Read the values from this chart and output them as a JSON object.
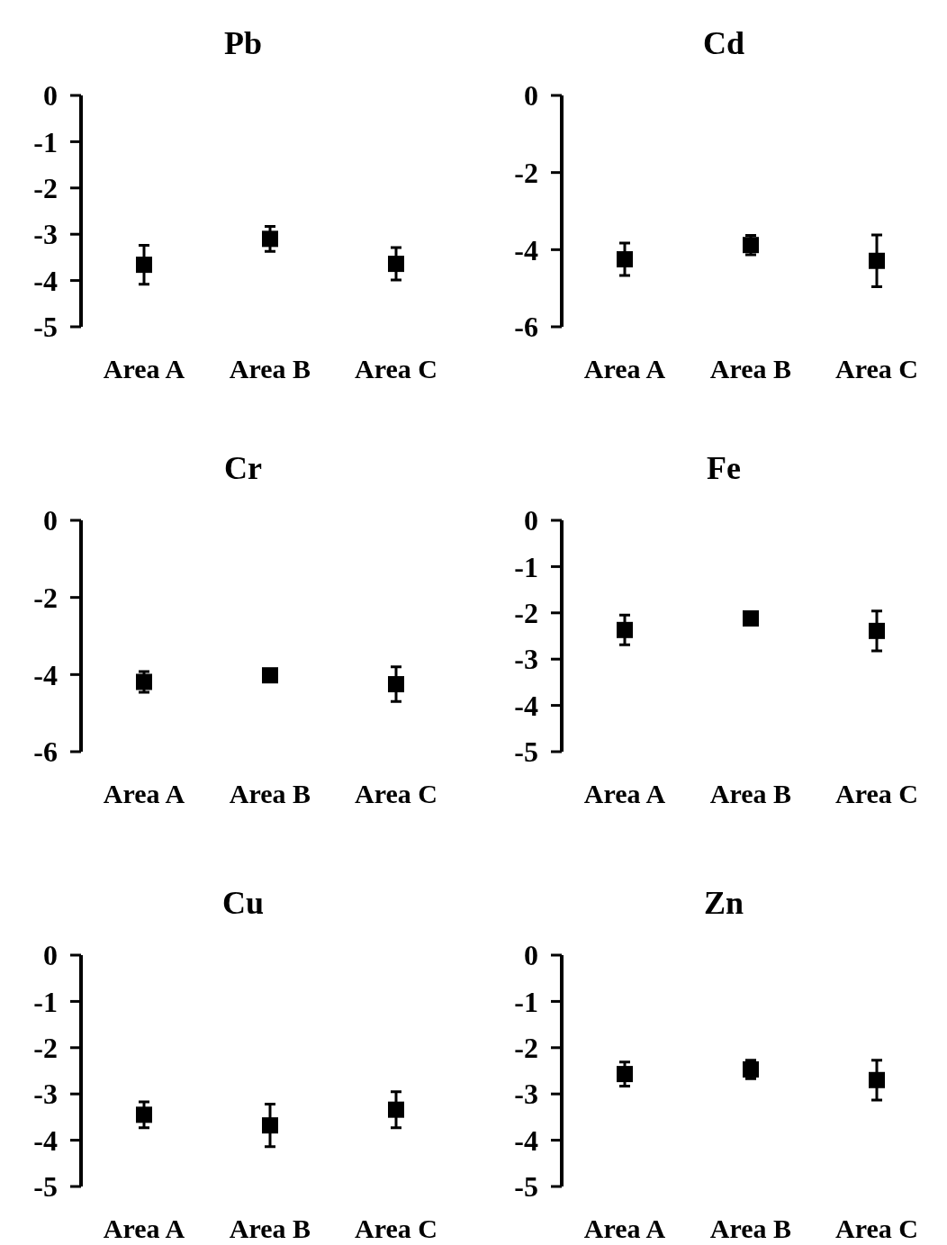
{
  "chart_data": [
    {
      "type": "scatter",
      "title": "Pb",
      "categories": [
        "Area A",
        "Area B",
        "Area C"
      ],
      "values": [
        -3.66,
        -3.1,
        -3.64
      ],
      "errors": [
        0.42,
        0.27,
        0.35
      ],
      "color": "#000000",
      "marker": "square",
      "ylim": [
        -5,
        0
      ],
      "yticks": [
        0,
        -1,
        -2,
        -3,
        -4,
        -5
      ]
    },
    {
      "type": "scatter",
      "title": "Cd",
      "categories": [
        "Area A",
        "Area B",
        "Area C"
      ],
      "values": [
        -4.25,
        -3.88,
        -4.29
      ],
      "errors": [
        0.42,
        0.25,
        0.67
      ],
      "color": "#000000",
      "marker": "square",
      "ylim": [
        -6,
        0
      ],
      "yticks": [
        0,
        -2,
        -4,
        -6
      ]
    },
    {
      "type": "scatter",
      "title": "Cr",
      "categories": [
        "Area A",
        "Area B",
        "Area C"
      ],
      "values": [
        -4.19,
        -4.02,
        -4.25
      ],
      "errors": [
        0.27,
        null,
        0.45
      ],
      "color": "#000000",
      "marker": "square",
      "ylim": [
        -6,
        0
      ],
      "yticks": [
        0,
        -2,
        -4,
        -6
      ]
    },
    {
      "type": "scatter",
      "title": "Fe",
      "categories": [
        "Area A",
        "Area B",
        "Area C"
      ],
      "values": [
        -2.37,
        -2.12,
        -2.39
      ],
      "errors": [
        0.32,
        null,
        0.43
      ],
      "color": "#000000",
      "marker": "square",
      "ylim": [
        -5,
        0
      ],
      "yticks": [
        0,
        -1,
        -2,
        -3,
        -4,
        -5
      ]
    },
    {
      "type": "scatter",
      "title": "Cu",
      "categories": [
        "Area A",
        "Area B",
        "Area C"
      ],
      "values": [
        -3.45,
        -3.68,
        -3.34
      ],
      "errors": [
        0.28,
        0.46,
        0.39
      ],
      "color": "#000000",
      "marker": "square",
      "ylim": [
        -5,
        0
      ],
      "yticks": [
        0,
        -1,
        -2,
        -3,
        -4,
        -5
      ]
    },
    {
      "type": "scatter",
      "title": "Zn",
      "categories": [
        "Area A",
        "Area B",
        "Area C"
      ],
      "values": [
        -2.57,
        -2.47,
        -2.7
      ],
      "errors": [
        0.26,
        0.2,
        0.43
      ],
      "color": "#000000",
      "marker": "square",
      "ylim": [
        -5,
        0
      ],
      "yticks": [
        0,
        -1,
        -2,
        -3,
        -4,
        -5
      ]
    }
  ]
}
